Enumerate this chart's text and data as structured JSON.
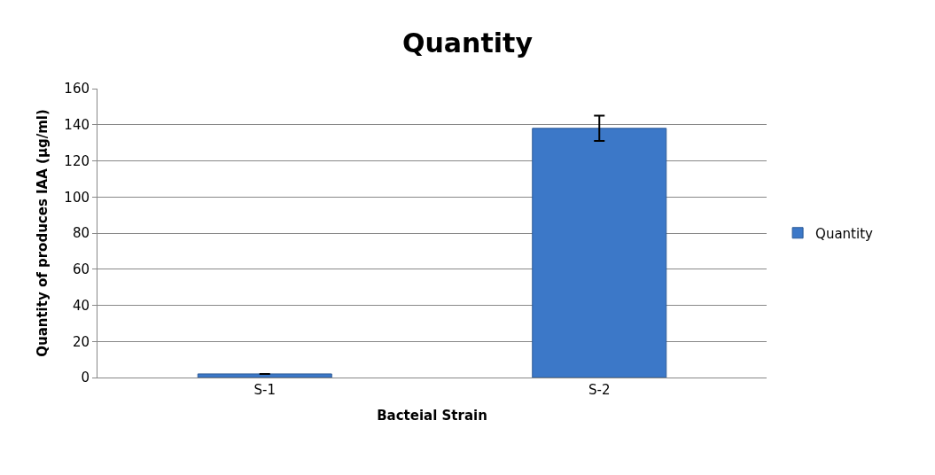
{
  "chart_data": {
    "type": "bar",
    "title": "Quantity",
    "xlabel": "Bacteial Strain",
    "ylabel": "Quantity of produces IAA (µg/ml)",
    "categories": [
      "S-1",
      "S-2"
    ],
    "series": [
      {
        "name": "Quantity",
        "color": "#3c78c8",
        "values": [
          2,
          138
        ],
        "errors": [
          null,
          7
        ]
      }
    ],
    "ylim": [
      0,
      160
    ],
    "yticks": [
      0,
      20,
      40,
      60,
      80,
      100,
      120,
      140,
      160
    ],
    "grid": "y",
    "legend": "right"
  }
}
